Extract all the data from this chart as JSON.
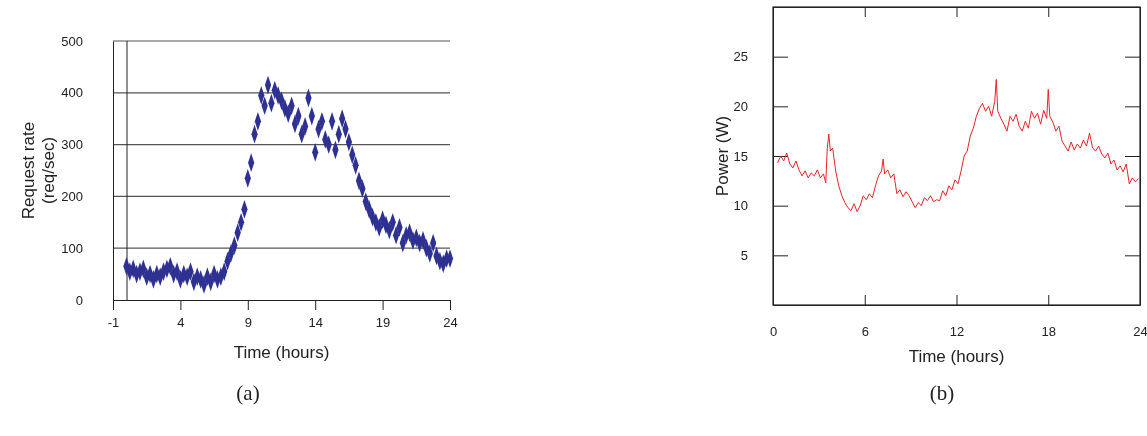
{
  "chart_data": [
    {
      "type": "scatter",
      "xlabel": "Time (hours)",
      "ylabel": "Request rate\n(req/sec)",
      "annotations": [
        "(a)"
      ],
      "marker": "diamond",
      "color": "#2e3192",
      "grid": "y",
      "xlim": [
        -1,
        24
      ],
      "xticks": [
        -1,
        4,
        9,
        14,
        19,
        24
      ],
      "ylim": [
        0,
        500
      ],
      "yticks": [
        0,
        100,
        200,
        300,
        400,
        500
      ],
      "x": [
        0,
        0.25,
        0.5,
        0.75,
        1,
        1.25,
        1.5,
        1.75,
        2,
        2.25,
        2.5,
        2.75,
        3,
        3.25,
        3.5,
        3.75,
        4,
        4.25,
        4.5,
        4.75,
        5,
        5.25,
        5.5,
        5.75,
        6,
        6.25,
        6.5,
        6.75,
        7,
        7.25,
        7.5,
        7.75,
        8,
        8.25,
        8.5,
        8.75,
        9,
        9.25,
        9.5,
        9.75,
        10,
        10.25,
        10.5,
        10.75,
        11,
        11.25,
        11.5,
        11.75,
        12,
        12.25,
        12.5,
        12.75,
        13,
        13.25,
        13.5,
        13.75,
        14,
        14.25,
        14.5,
        14.75,
        15,
        15.25,
        15.5,
        15.75,
        16,
        16.25,
        16.5,
        16.75,
        17,
        17.25,
        17.5,
        17.75,
        18,
        18.25,
        18.5,
        18.75,
        19,
        19.25,
        19.5,
        19.75,
        20,
        20.25,
        20.5,
        20.75,
        21,
        21.25,
        21.5,
        21.75,
        22,
        22.25,
        22.5,
        22.75,
        23,
        23.25,
        23.5,
        23.75,
        24
      ],
      "values": [
        65,
        55,
        60,
        50,
        55,
        60,
        45,
        50,
        40,
        50,
        45,
        55,
        60,
        65,
        50,
        55,
        40,
        50,
        45,
        55,
        35,
        45,
        40,
        30,
        45,
        35,
        50,
        40,
        45,
        55,
        75,
        90,
        105,
        130,
        150,
        175,
        235,
        265,
        320,
        345,
        395,
        375,
        415,
        380,
        405,
        395,
        385,
        370,
        360,
        375,
        340,
        355,
        320,
        335,
        390,
        355,
        285,
        330,
        345,
        310,
        300,
        345,
        290,
        320,
        350,
        330,
        305,
        280,
        260,
        230,
        215,
        190,
        175,
        160,
        150,
        140,
        155,
        145,
        135,
        150,
        125,
        140,
        110,
        125,
        130,
        115,
        120,
        110,
        115,
        100,
        90,
        110,
        85,
        75,
        70,
        80,
        80
      ]
    },
    {
      "type": "line",
      "xlabel": "Time (hours)",
      "ylabel": "Power (W)",
      "annotations": [
        "(b)"
      ],
      "color": "#e8242a",
      "xlim": [
        0,
        24
      ],
      "xticks": [
        0,
        6,
        12,
        18,
        24
      ],
      "ylim": [
        0,
        30
      ],
      "yticks": [
        5,
        10,
        15,
        20,
        25
      ],
      "x": [
        0.3,
        0.5,
        0.7,
        0.9,
        1.1,
        1.3,
        1.5,
        1.7,
        1.9,
        2.1,
        2.3,
        2.5,
        2.7,
        2.9,
        3.1,
        3.3,
        3.45,
        3.55,
        3.65,
        3.75,
        3.9,
        4.1,
        4.3,
        4.5,
        4.7,
        4.9,
        5.1,
        5.3,
        5.5,
        5.7,
        5.9,
        6.1,
        6.3,
        6.5,
        6.7,
        6.9,
        7.1,
        7.2,
        7.3,
        7.5,
        7.7,
        7.9,
        8.1,
        8.3,
        8.5,
        8.7,
        8.9,
        9.1,
        9.3,
        9.5,
        9.7,
        9.9,
        10.1,
        10.3,
        10.5,
        10.7,
        10.9,
        11.1,
        11.3,
        11.5,
        11.7,
        11.9,
        12.1,
        12.3,
        12.5,
        12.7,
        12.9,
        13.1,
        13.3,
        13.5,
        13.7,
        13.9,
        14.1,
        14.3,
        14.5,
        14.6,
        14.7,
        14.9,
        15.1,
        15.3,
        15.5,
        15.7,
        15.9,
        16.1,
        16.3,
        16.5,
        16.7,
        16.9,
        17.1,
        17.3,
        17.5,
        17.7,
        17.9,
        18.0,
        18.1,
        18.3,
        18.5,
        18.7,
        18.9,
        19.1,
        19.3,
        19.5,
        19.7,
        19.9,
        20.1,
        20.3,
        20.5,
        20.7,
        20.9,
        21.1,
        21.3,
        21.5,
        21.7,
        21.9,
        22.1,
        22.3,
        22.5,
        22.7,
        22.9,
        23.1,
        23.3,
        23.5,
        23.7,
        23.9
      ],
      "values": [
        14.3,
        15.0,
        14.5,
        15.3,
        14.2,
        13.8,
        14.5,
        13.6,
        13.0,
        13.5,
        12.8,
        13.3,
        13.0,
        13.6,
        12.8,
        13.2,
        12.3,
        15.8,
        17.2,
        15.5,
        15.8,
        13.5,
        12.0,
        11.0,
        10.3,
        9.8,
        9.5,
        10.2,
        9.4,
        10.0,
        11.0,
        10.6,
        11.2,
        10.8,
        12.0,
        13.0,
        13.5,
        14.7,
        13.2,
        13.6,
        12.8,
        13.2,
        11.2,
        11.6,
        10.9,
        11.4,
        11.0,
        10.4,
        9.8,
        10.3,
        10.0,
        10.8,
        10.5,
        11.0,
        10.4,
        10.6,
        10.5,
        11.5,
        11.0,
        12.0,
        11.6,
        12.6,
        12.2,
        13.5,
        15.0,
        15.5,
        17.0,
        17.8,
        19.0,
        19.8,
        20.3,
        19.5,
        20.0,
        19.0,
        20.5,
        22.7,
        19.5,
        18.8,
        18.2,
        17.5,
        19.0,
        18.5,
        19.2,
        18.0,
        17.5,
        18.5,
        17.8,
        19.5,
        18.8,
        19.3,
        18.2,
        19.6,
        18.8,
        21.7,
        19.0,
        18.4,
        17.5,
        18.0,
        16.5,
        16.0,
        15.5,
        16.4,
        15.6,
        16.2,
        15.8,
        16.6,
        16.0,
        17.3,
        15.8,
        15.5,
        16.0,
        15.2,
        14.8,
        15.3,
        14.2,
        14.6,
        13.6,
        14.0,
        13.4,
        14.2,
        12.2,
        12.8,
        12.4,
        12.7
      ]
    }
  ]
}
